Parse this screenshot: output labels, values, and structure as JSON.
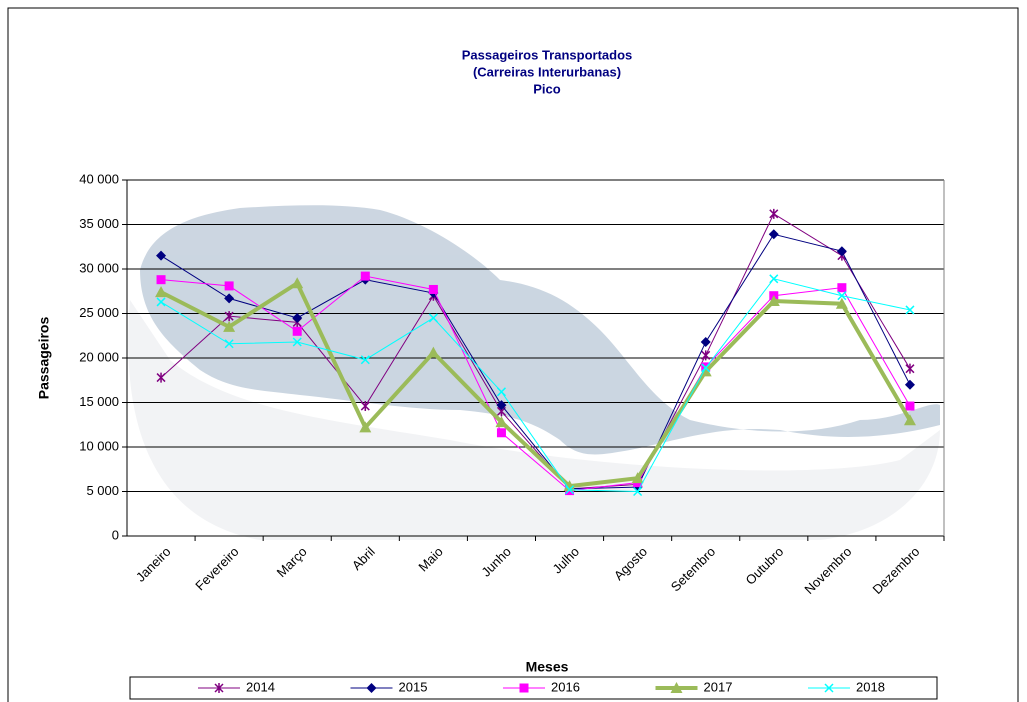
{
  "chart_data": {
    "type": "line",
    "title": [
      "Passageiros Transportados",
      "(Carreiras Interurbanas)",
      "Pico"
    ],
    "x_label": "Meses",
    "y_label": "Passageiros",
    "categories": [
      "Janeiro",
      "Fevereiro",
      "Março",
      "Abril",
      "Maio",
      "Junho",
      "Julho",
      "Agosto",
      "Setembro",
      "Outubro",
      "Novembro",
      "Dezembro"
    ],
    "ylim": [
      0,
      40000
    ],
    "yticks": [
      0,
      {
        "value": 5000,
        "label": "5 000"
      },
      {
        "value": 10000,
        "label": "10 000"
      },
      {
        "value": 15000,
        "label": "15 000"
      },
      {
        "value": 20000,
        "label": "20 000"
      },
      {
        "value": 25000,
        "label": "25 000"
      },
      {
        "value": 30000,
        "label": "30 000"
      },
      {
        "value": 35000,
        "label": "35 000"
      },
      {
        "value": 40000,
        "label": "40 000"
      }
    ],
    "grid": true,
    "legend": "bottom",
    "series": [
      {
        "name": "2014",
        "color": "#800080",
        "marker": "star",
        "width": 1,
        "values": [
          17800,
          24700,
          24000,
          14600,
          27000,
          14000,
          5300,
          5800,
          20300,
          36200,
          31500,
          18800
        ]
      },
      {
        "name": "2015",
        "color": "#000080",
        "marker": "diamond",
        "width": 1,
        "values": [
          31500,
          26700,
          24500,
          28800,
          27300,
          14700,
          5300,
          5500,
          21800,
          33900,
          32000,
          17000
        ]
      },
      {
        "name": "2016",
        "color": "#ff00ff",
        "marker": "square",
        "width": 1,
        "values": [
          28800,
          28100,
          23000,
          29200,
          27700,
          11600,
          5100,
          6000,
          19000,
          27000,
          27900,
          14600
        ]
      },
      {
        "name": "2017",
        "color": "#9bbb59",
        "marker": "triangle",
        "width": 4,
        "values": [
          27400,
          23500,
          28400,
          12200,
          20600,
          12800,
          5600,
          6500,
          18500,
          26400,
          26100,
          13000
        ]
      },
      {
        "name": "2018",
        "color": "#00ffff",
        "marker": "cross",
        "width": 1,
        "values": [
          26300,
          21600,
          21800,
          19800,
          24500,
          16200,
          5200,
          5000,
          18900,
          28900,
          27000,
          25400
        ]
      }
    ]
  }
}
